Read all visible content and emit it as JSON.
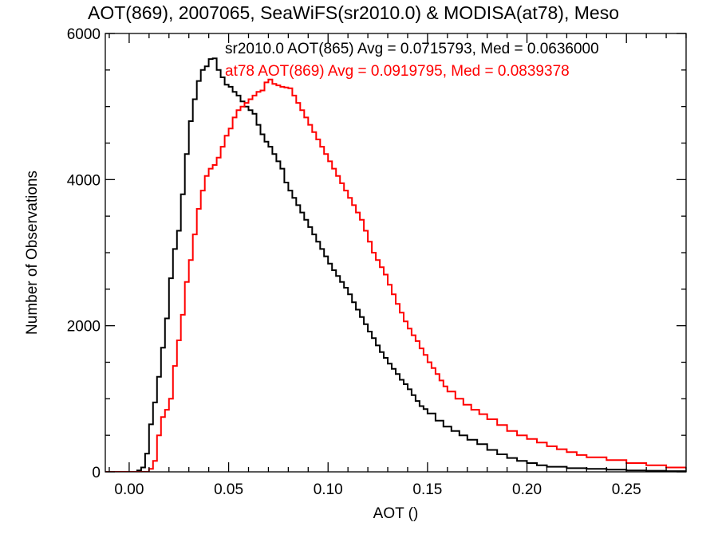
{
  "chart_data": {
    "type": "line",
    "title": "AOT(869), 2007065, SeaWiFS(sr2010.0) & MODISA(at78), Meso",
    "xlabel": "AOT ()",
    "ylabel": "Number of Observations",
    "xlim": [
      -0.012,
      0.28
    ],
    "ylim": [
      0,
      6000
    ],
    "xticks": [
      0.0,
      0.05,
      0.1,
      0.15,
      0.2,
      0.25
    ],
    "xtick_labels": [
      "0.00",
      "0.05",
      "0.10",
      "0.15",
      "0.20",
      "0.25"
    ],
    "yticks": [
      0,
      2000,
      4000,
      6000
    ],
    "ytick_labels": [
      "0",
      "2000",
      "4000",
      "6000"
    ],
    "grid": false,
    "legend_placement": "top-right",
    "series": [
      {
        "name": "sr2010.0 AOT(865) Avg = 0.0715793, Med = 0.0636000",
        "color": "#000000",
        "points": [
          [
            -0.012,
            0
          ],
          [
            0.0,
            0
          ],
          [
            0.004,
            20
          ],
          [
            0.006,
            60
          ],
          [
            0.008,
            250
          ],
          [
            0.01,
            650
          ],
          [
            0.012,
            950
          ],
          [
            0.014,
            1300
          ],
          [
            0.016,
            1700
          ],
          [
            0.018,
            2100
          ],
          [
            0.02,
            2650
          ],
          [
            0.022,
            3050
          ],
          [
            0.024,
            3300
          ],
          [
            0.026,
            3800
          ],
          [
            0.028,
            4350
          ],
          [
            0.03,
            4800
          ],
          [
            0.032,
            5100
          ],
          [
            0.034,
            5350
          ],
          [
            0.036,
            5500
          ],
          [
            0.038,
            5550
          ],
          [
            0.04,
            5650
          ],
          [
            0.042,
            5660
          ],
          [
            0.044,
            5500
          ],
          [
            0.046,
            5400
          ],
          [
            0.048,
            5300
          ],
          [
            0.05,
            5270
          ],
          [
            0.052,
            5200
          ],
          [
            0.054,
            5150
          ],
          [
            0.056,
            5070
          ],
          [
            0.058,
            5000
          ],
          [
            0.06,
            4950
          ],
          [
            0.062,
            4900
          ],
          [
            0.064,
            4750
          ],
          [
            0.066,
            4620
          ],
          [
            0.068,
            4520
          ],
          [
            0.07,
            4450
          ],
          [
            0.072,
            4350
          ],
          [
            0.074,
            4250
          ],
          [
            0.076,
            4150
          ],
          [
            0.078,
            3960
          ],
          [
            0.08,
            3850
          ],
          [
            0.082,
            3750
          ],
          [
            0.084,
            3650
          ],
          [
            0.086,
            3550
          ],
          [
            0.088,
            3450
          ],
          [
            0.09,
            3350
          ],
          [
            0.092,
            3250
          ],
          [
            0.094,
            3150
          ],
          [
            0.096,
            3050
          ],
          [
            0.098,
            2950
          ],
          [
            0.1,
            2850
          ],
          [
            0.102,
            2760
          ],
          [
            0.104,
            2680
          ],
          [
            0.106,
            2600
          ],
          [
            0.108,
            2520
          ],
          [
            0.11,
            2430
          ],
          [
            0.112,
            2320
          ],
          [
            0.114,
            2220
          ],
          [
            0.116,
            2120
          ],
          [
            0.118,
            2020
          ],
          [
            0.12,
            1920
          ],
          [
            0.122,
            1830
          ],
          [
            0.124,
            1730
          ],
          [
            0.126,
            1640
          ],
          [
            0.128,
            1560
          ],
          [
            0.13,
            1480
          ],
          [
            0.132,
            1410
          ],
          [
            0.134,
            1340
          ],
          [
            0.136,
            1260
          ],
          [
            0.138,
            1200
          ],
          [
            0.14,
            1130
          ],
          [
            0.142,
            1050
          ],
          [
            0.144,
            970
          ],
          [
            0.146,
            900
          ],
          [
            0.148,
            860
          ],
          [
            0.15,
            800
          ],
          [
            0.154,
            700
          ],
          [
            0.158,
            620
          ],
          [
            0.162,
            560
          ],
          [
            0.166,
            500
          ],
          [
            0.17,
            440
          ],
          [
            0.175,
            380
          ],
          [
            0.18,
            300
          ],
          [
            0.185,
            240
          ],
          [
            0.19,
            190
          ],
          [
            0.195,
            150
          ],
          [
            0.2,
            120
          ],
          [
            0.205,
            90
          ],
          [
            0.21,
            70
          ],
          [
            0.22,
            50
          ],
          [
            0.23,
            40
          ],
          [
            0.24,
            30
          ],
          [
            0.25,
            20
          ],
          [
            0.26,
            15
          ],
          [
            0.27,
            10
          ],
          [
            0.28,
            5
          ]
        ]
      },
      {
        "name": "at78 AOT(869) Avg = 0.0919795, Med = 0.0839378",
        "color": "#ff0000",
        "points": [
          [
            -0.012,
            0
          ],
          [
            0.008,
            0
          ],
          [
            0.01,
            40
          ],
          [
            0.012,
            150
          ],
          [
            0.014,
            500
          ],
          [
            0.016,
            750
          ],
          [
            0.018,
            850
          ],
          [
            0.02,
            1000
          ],
          [
            0.022,
            1450
          ],
          [
            0.024,
            1800
          ],
          [
            0.026,
            2150
          ],
          [
            0.028,
            2600
          ],
          [
            0.03,
            2900
          ],
          [
            0.032,
            3250
          ],
          [
            0.034,
            3600
          ],
          [
            0.036,
            3850
          ],
          [
            0.038,
            4050
          ],
          [
            0.04,
            4150
          ],
          [
            0.042,
            4200
          ],
          [
            0.044,
            4300
          ],
          [
            0.046,
            4450
          ],
          [
            0.048,
            4600
          ],
          [
            0.05,
            4700
          ],
          [
            0.052,
            4850
          ],
          [
            0.054,
            4950
          ],
          [
            0.056,
            5000
          ],
          [
            0.058,
            5050
          ],
          [
            0.06,
            5100
          ],
          [
            0.062,
            5150
          ],
          [
            0.064,
            5200
          ],
          [
            0.066,
            5220
          ],
          [
            0.068,
            5330
          ],
          [
            0.07,
            5370
          ],
          [
            0.072,
            5310
          ],
          [
            0.074,
            5290
          ],
          [
            0.076,
            5270
          ],
          [
            0.078,
            5260
          ],
          [
            0.08,
            5250
          ],
          [
            0.082,
            5150
          ],
          [
            0.084,
            5050
          ],
          [
            0.086,
            4950
          ],
          [
            0.088,
            4850
          ],
          [
            0.09,
            4750
          ],
          [
            0.092,
            4650
          ],
          [
            0.094,
            4550
          ],
          [
            0.096,
            4450
          ],
          [
            0.098,
            4350
          ],
          [
            0.1,
            4250
          ],
          [
            0.102,
            4150
          ],
          [
            0.104,
            4050
          ],
          [
            0.106,
            3950
          ],
          [
            0.108,
            3850
          ],
          [
            0.11,
            3750
          ],
          [
            0.112,
            3650
          ],
          [
            0.114,
            3550
          ],
          [
            0.116,
            3450
          ],
          [
            0.118,
            3300
          ],
          [
            0.12,
            3150
          ],
          [
            0.122,
            3000
          ],
          [
            0.124,
            2900
          ],
          [
            0.126,
            2800
          ],
          [
            0.128,
            2700
          ],
          [
            0.13,
            2560
          ],
          [
            0.132,
            2430
          ],
          [
            0.134,
            2300
          ],
          [
            0.136,
            2180
          ],
          [
            0.138,
            2060
          ],
          [
            0.14,
            1960
          ],
          [
            0.142,
            1870
          ],
          [
            0.144,
            1790
          ],
          [
            0.146,
            1690
          ],
          [
            0.148,
            1600
          ],
          [
            0.15,
            1500
          ],
          [
            0.152,
            1420
          ],
          [
            0.154,
            1340
          ],
          [
            0.156,
            1250
          ],
          [
            0.158,
            1170
          ],
          [
            0.16,
            1100
          ],
          [
            0.164,
            1000
          ],
          [
            0.168,
            920
          ],
          [
            0.172,
            850
          ],
          [
            0.176,
            790
          ],
          [
            0.18,
            720
          ],
          [
            0.185,
            640
          ],
          [
            0.19,
            560
          ],
          [
            0.195,
            500
          ],
          [
            0.2,
            450
          ],
          [
            0.205,
            400
          ],
          [
            0.21,
            350
          ],
          [
            0.215,
            310
          ],
          [
            0.22,
            270
          ],
          [
            0.225,
            230
          ],
          [
            0.23,
            200
          ],
          [
            0.24,
            160
          ],
          [
            0.25,
            120
          ],
          [
            0.26,
            90
          ],
          [
            0.27,
            60
          ],
          [
            0.28,
            40
          ]
        ]
      }
    ]
  }
}
